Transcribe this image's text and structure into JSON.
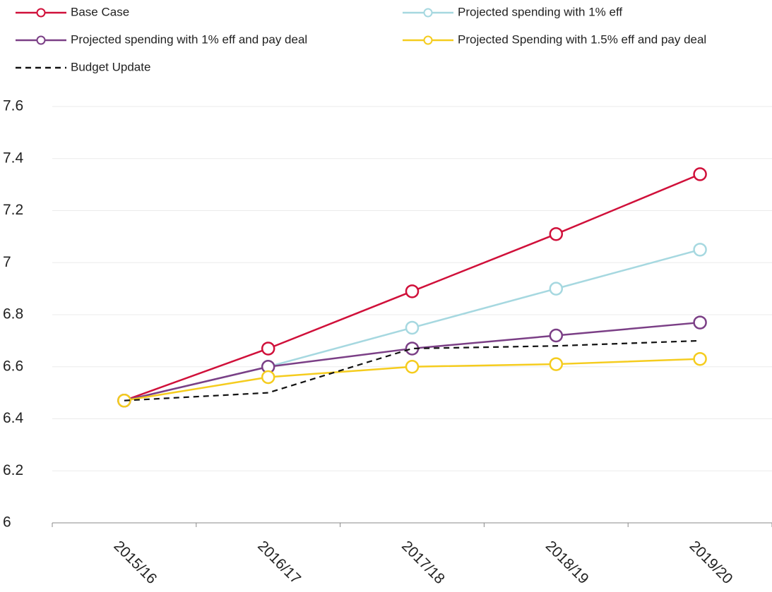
{
  "chart_data": {
    "type": "line",
    "categories": [
      "2015/16",
      "2016/17",
      "2017/18",
      "2018/19",
      "2019/20"
    ],
    "series": [
      {
        "name": "Base Case",
        "color": "#d0103a",
        "markers": true,
        "dashed": false,
        "values": [
          6.47,
          6.67,
          6.89,
          7.11,
          7.34
        ]
      },
      {
        "name": "Projected spending with 1% eff",
        "color": "#a6d8e0",
        "markers": true,
        "dashed": false,
        "values": [
          6.47,
          6.6,
          6.75,
          6.9,
          7.05
        ]
      },
      {
        "name": "Projected spending with 1% eff and pay deal",
        "color": "#7b3f86",
        "markers": true,
        "dashed": false,
        "values": [
          6.47,
          6.6,
          6.67,
          6.72,
          6.77
        ]
      },
      {
        "name": "Projected Spending with 1.5% eff and pay deal",
        "color": "#f5cc1e",
        "markers": true,
        "dashed": false,
        "values": [
          6.47,
          6.56,
          6.6,
          6.61,
          6.63
        ]
      },
      {
        "name": "Budget Update",
        "color": "#111111",
        "markers": false,
        "dashed": true,
        "values": [
          6.47,
          6.5,
          6.67,
          6.68,
          6.7
        ]
      }
    ],
    "ylim": [
      6,
      7.6
    ],
    "yticks": [
      6,
      6.2,
      6.4,
      6.6,
      6.8,
      7,
      7.2,
      7.4,
      7.6
    ],
    "grid": true,
    "legend": "top"
  }
}
